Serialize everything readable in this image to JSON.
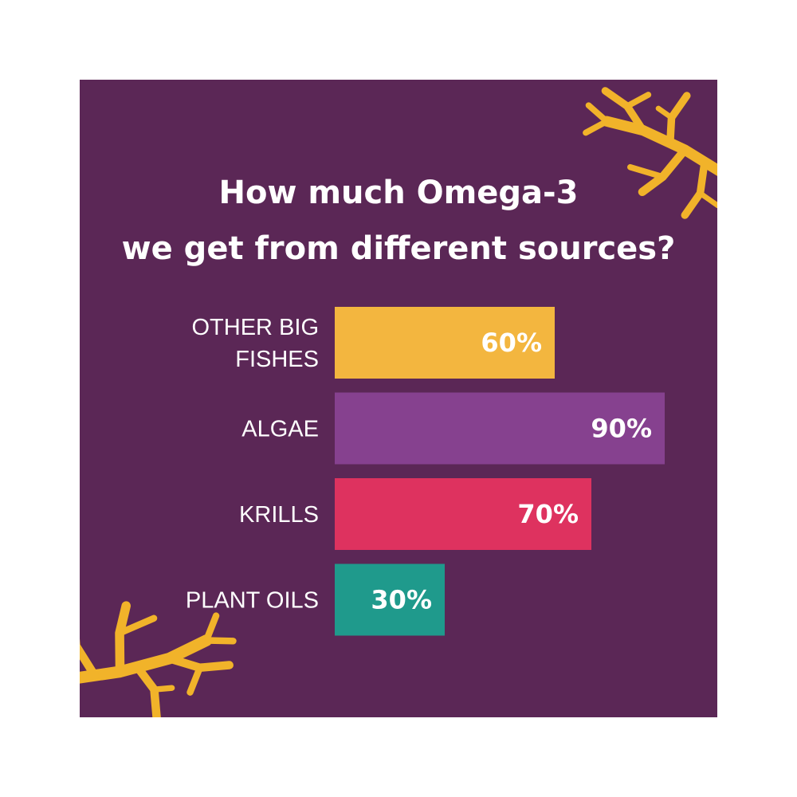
{
  "title_lines": [
    "How much Omega-3",
    "we get from different sources?"
  ],
  "decoration": {
    "icon": "coral-icon",
    "color": "#f1b32a"
  },
  "background_color": "#5b2756",
  "chart_data": {
    "type": "bar",
    "orientation": "horizontal",
    "title": "How much Omega-3 we get from different sources?",
    "categories": [
      "OTHER BIG FISHES",
      "ALGAE",
      "KRILLS",
      "PLANT OILS"
    ],
    "category_lines": [
      [
        "OTHER BIG",
        "FISHES"
      ],
      [
        "ALGAE"
      ],
      [
        "KRILLS"
      ],
      [
        "PLANT OILS"
      ]
    ],
    "values": [
      60,
      90,
      70,
      30
    ],
    "value_labels": [
      "60%",
      "90%",
      "70%",
      "30%"
    ],
    "colors": [
      "#f3b63f",
      "#86418f",
      "#de325f",
      "#1f9a8c"
    ],
    "xlim": [
      0,
      100
    ],
    "grid": false,
    "legend": "none"
  }
}
